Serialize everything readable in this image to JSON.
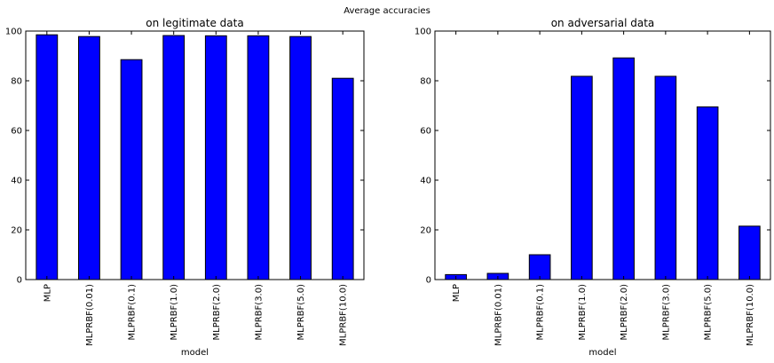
{
  "figure": {
    "suptitle": "Average accuracies"
  },
  "chart_data": [
    {
      "type": "bar",
      "title": "on legitimate data",
      "xlabel": "model",
      "ylabel": "",
      "ylim": [
        0,
        100
      ],
      "yticks": [
        "0",
        "20",
        "40",
        "60",
        "80",
        "100"
      ],
      "grid": false,
      "bar_color": "#0000ff",
      "categories": [
        "MLP",
        "MLPRBF(0.01)",
        "MLPRBF(0.1)",
        "MLPRBF(1.0)",
        "MLPRBF(2.0)",
        "MLPRBF(3.0)",
        "MLPRBF(5.0)",
        "MLPRBF(10.0)"
      ],
      "values": [
        98.5,
        97.8,
        88.5,
        98.2,
        98.1,
        98.1,
        97.8,
        81.0
      ]
    },
    {
      "type": "bar",
      "title": "on adversarial data",
      "xlabel": "model",
      "ylabel": "",
      "ylim": [
        0,
        100
      ],
      "yticks": [
        "0",
        "20",
        "40",
        "60",
        "80",
        "100"
      ],
      "grid": false,
      "bar_color": "#0000ff",
      "categories": [
        "MLP",
        "MLPRBF(0.01)",
        "MLPRBF(0.1)",
        "MLPRBF(1.0)",
        "MLPRBF(2.0)",
        "MLPRBF(3.0)",
        "MLPRBF(5.0)",
        "MLPRBF(10.0)"
      ],
      "values": [
        2.0,
        2.5,
        10.0,
        81.8,
        89.2,
        81.8,
        69.5,
        21.5
      ]
    }
  ]
}
